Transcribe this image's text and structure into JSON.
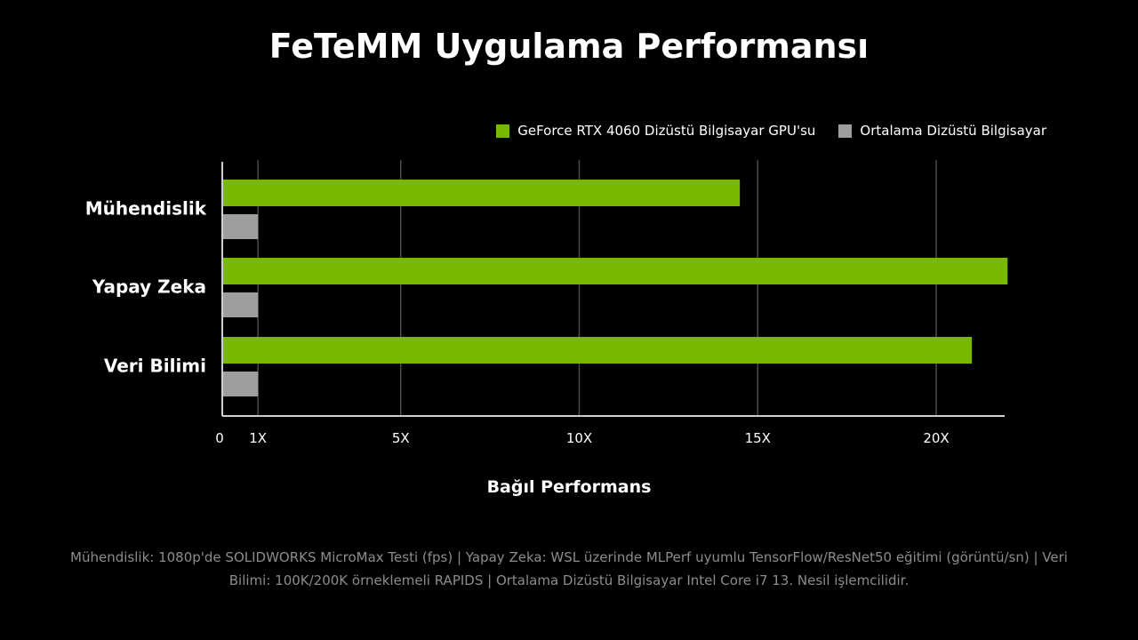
{
  "colors": {
    "rtx": "#76b900",
    "avg": "#9e9e9e",
    "axis": "#cfcfcf",
    "grid": "#4a4a4a",
    "footnote": "#8c8c8c"
  },
  "chart_data": {
    "type": "bar",
    "orientation": "horizontal",
    "title": "FeTeMM Uygulama Performansı",
    "xlabel": "Bağıl Performans",
    "ylabel": "",
    "categories": [
      "Mühendislik",
      "Yapay Zeka",
      "Veri Bilimi"
    ],
    "series": [
      {
        "name": "GeForce RTX 4060 Dizüstü Bilgisayar GPU'su",
        "values": [
          14.5,
          22.0,
          21.0
        ],
        "color": "#76b900"
      },
      {
        "name": "Ortalama Dizüstü Bilgisayar",
        "values": [
          1,
          1,
          1
        ],
        "color": "#9e9e9e"
      }
    ],
    "x_ticks": [
      {
        "value": 0,
        "label": "0"
      },
      {
        "value": 1,
        "label": "1X"
      },
      {
        "value": 5,
        "label": "5X"
      },
      {
        "value": 10,
        "label": "10X"
      },
      {
        "value": 15,
        "label": "15X"
      },
      {
        "value": 20,
        "label": "20X"
      }
    ],
    "xlim": [
      0,
      22
    ],
    "grid": true,
    "legend_position": "top-right"
  },
  "footnote": {
    "line1": "Mühendislik: 1080p'de SOLIDWORKS MicroMax Testi (fps) | Yapay Zeka: WSL üzerinde MLPerf uyumlu TensorFlow/ResNet50 eğitimi (görüntü/sn) | Veri",
    "line2": "Bilimi: 100K/200K örneklemeli RAPIDS |  Ortalama Dizüstü Bilgisayar Intel Core i7 13. Nesil işlemcilidir."
  }
}
